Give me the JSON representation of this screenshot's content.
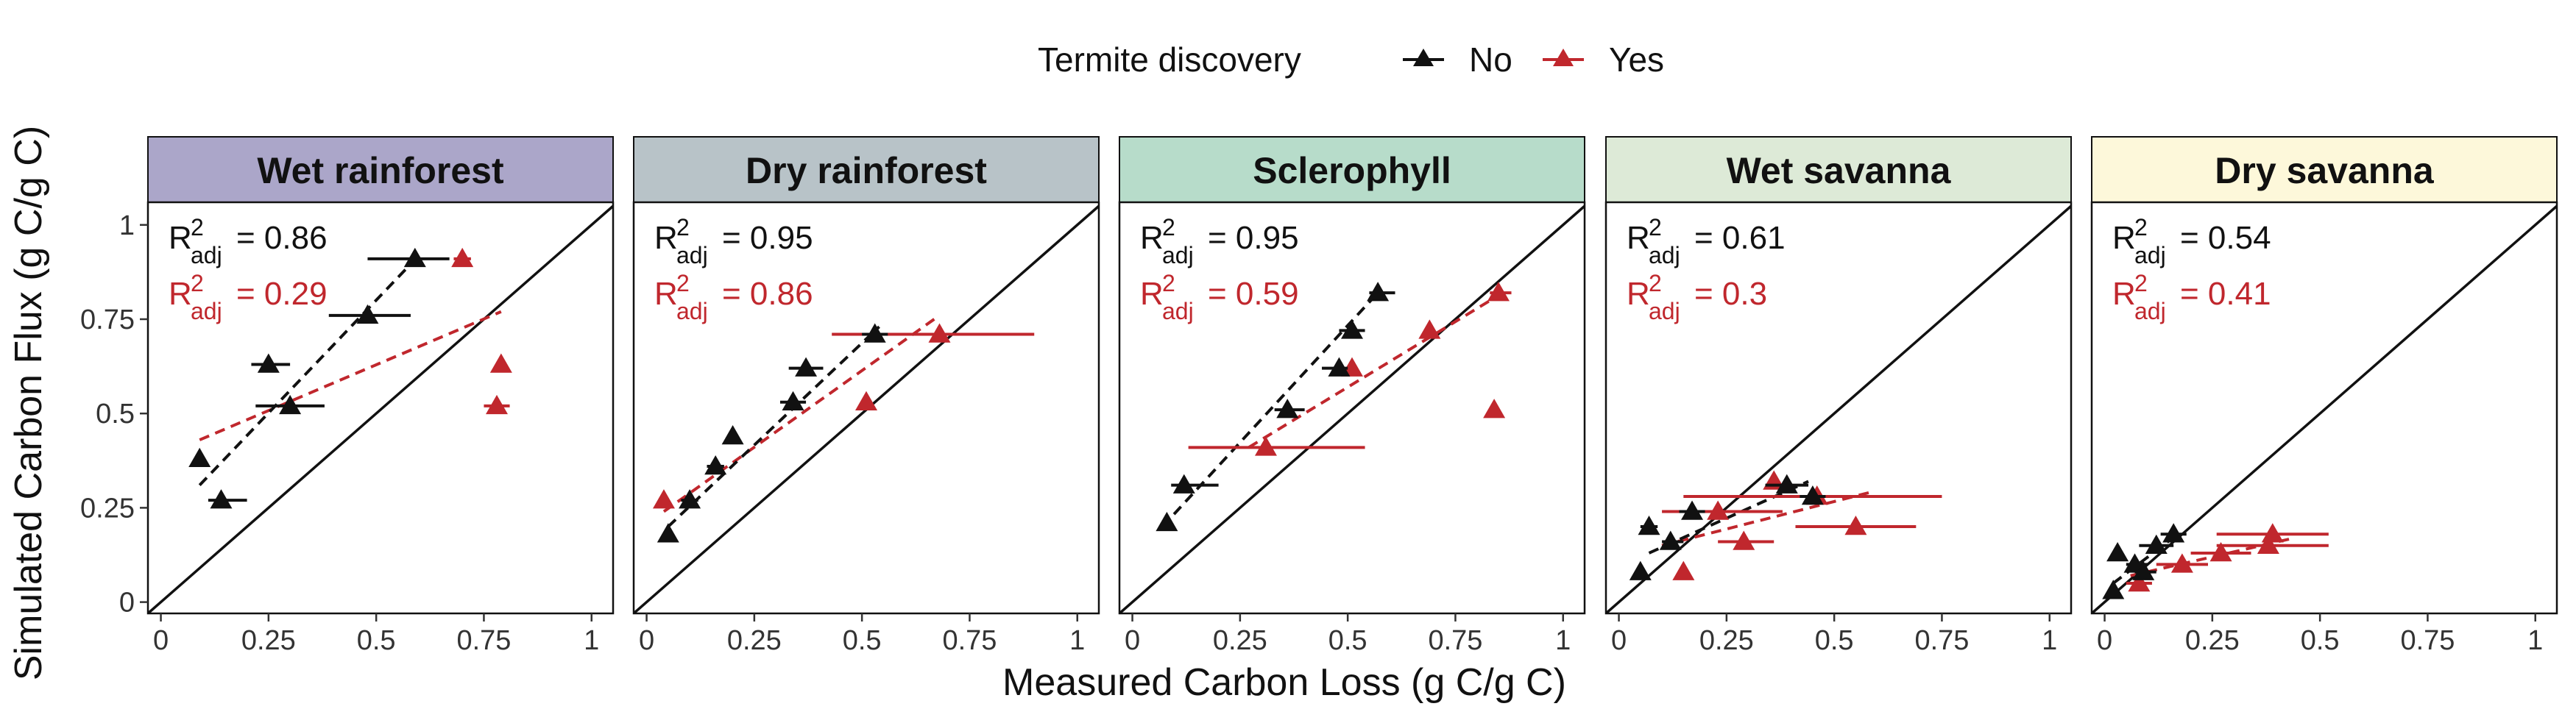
{
  "legend": {
    "title": "Termite discovery",
    "items": [
      {
        "label": "No",
        "color": "#111111"
      },
      {
        "label": "Yes",
        "color": "#C0272D"
      }
    ]
  },
  "axes": {
    "xlabel": "Measured Carbon Loss (g C/g C)",
    "ylabel": "Simulated Carbon Flux (g C/g C)",
    "xlim": [
      -0.03,
      1.05
    ],
    "ylim": [
      -0.03,
      1.06
    ],
    "xticks": [
      0,
      0.25,
      0.5,
      0.75,
      1
    ],
    "xtick_labels": [
      "0",
      "0.25",
      "0.5",
      "0.75",
      "1"
    ],
    "yticks": [
      0,
      0.25,
      0.5,
      0.75,
      1
    ],
    "ytick_labels": [
      "0",
      "0.25",
      "0.5",
      "0.75",
      "1"
    ]
  },
  "chart_data": {
    "type": "scatter",
    "reference_line": "1:1",
    "panels": [
      {
        "title": "Wet rainforest",
        "strip_color": "#ABA6C9",
        "r2_no": "0.86",
        "r2_yes": "0.29",
        "no": [
          {
            "x": 0.59,
            "y": 0.91,
            "xerr": [
              0.48,
              0.67
            ]
          },
          {
            "x": 0.48,
            "y": 0.76,
            "xerr": [
              0.39,
              0.58
            ]
          },
          {
            "x": 0.25,
            "y": 0.63,
            "xerr": [
              0.21,
              0.3
            ]
          },
          {
            "x": 0.3,
            "y": 0.52,
            "xerr": [
              0.22,
              0.38
            ]
          },
          {
            "x": 0.09,
            "y": 0.38,
            "xerr": [
              0.09,
              0.09
            ]
          },
          {
            "x": 0.14,
            "y": 0.27,
            "xerr": [
              0.11,
              0.2
            ]
          }
        ],
        "yes": [
          {
            "x": 0.7,
            "y": 0.91,
            "xerr": [
              0.68,
              0.72
            ]
          },
          {
            "x": 0.79,
            "y": 0.63,
            "xerr": [
              0.79,
              0.79
            ]
          },
          {
            "x": 0.78,
            "y": 0.52,
            "xerr": [
              0.75,
              0.81
            ]
          }
        ],
        "fit_no": [
          [
            0.09,
            0.31
          ],
          [
            0.6,
            0.92
          ]
        ],
        "fit_yes": [
          [
            0.09,
            0.43
          ],
          [
            0.79,
            0.77
          ]
        ]
      },
      {
        "title": "Dry rainforest",
        "strip_color": "#B8C3C8",
        "r2_no": "0.95",
        "r2_yes": "0.86",
        "no": [
          {
            "x": 0.53,
            "y": 0.71,
            "xerr": [
              0.5,
              0.56
            ]
          },
          {
            "x": 0.37,
            "y": 0.62,
            "xerr": [
              0.33,
              0.41
            ]
          },
          {
            "x": 0.34,
            "y": 0.53,
            "xerr": [
              0.31,
              0.37
            ]
          },
          {
            "x": 0.2,
            "y": 0.44,
            "xerr": [
              0.19,
              0.21
            ]
          },
          {
            "x": 0.16,
            "y": 0.36,
            "xerr": [
              0.14,
              0.18
            ]
          },
          {
            "x": 0.1,
            "y": 0.27,
            "xerr": [
              0.08,
              0.12
            ]
          },
          {
            "x": 0.05,
            "y": 0.18,
            "xerr": [
              0.05,
              0.05
            ]
          }
        ],
        "yes": [
          {
            "x": 0.68,
            "y": 0.71,
            "xerr": [
              0.43,
              0.9
            ]
          },
          {
            "x": 0.51,
            "y": 0.53,
            "xerr": [
              0.51,
              0.51
            ]
          },
          {
            "x": 0.04,
            "y": 0.27,
            "xerr": [
              0.04,
              0.04
            ]
          }
        ],
        "fit_no": [
          [
            0.05,
            0.2
          ],
          [
            0.54,
            0.73
          ]
        ],
        "fit_yes": [
          [
            0.04,
            0.24
          ],
          [
            0.68,
            0.76
          ]
        ]
      },
      {
        "title": "Sclerophyll",
        "strip_color": "#B7DCCA",
        "r2_no": "0.95",
        "r2_yes": "0.59",
        "no": [
          {
            "x": 0.57,
            "y": 0.82,
            "xerr": [
              0.55,
              0.61
            ]
          },
          {
            "x": 0.51,
            "y": 0.72,
            "xerr": [
              0.48,
              0.54
            ]
          },
          {
            "x": 0.48,
            "y": 0.62,
            "xerr": [
              0.44,
              0.5
            ]
          },
          {
            "x": 0.36,
            "y": 0.51,
            "xerr": [
              0.33,
              0.4
            ]
          },
          {
            "x": 0.12,
            "y": 0.31,
            "xerr": [
              0.09,
              0.2
            ]
          },
          {
            "x": 0.08,
            "y": 0.21,
            "xerr": [
              0.07,
              0.09
            ]
          }
        ],
        "yes": [
          {
            "x": 0.85,
            "y": 0.82,
            "xerr": [
              0.83,
              0.88
            ]
          },
          {
            "x": 0.69,
            "y": 0.72,
            "xerr": [
              0.69,
              0.69
            ]
          },
          {
            "x": 0.51,
            "y": 0.62,
            "xerr": [
              0.51,
              0.51
            ]
          },
          {
            "x": 0.31,
            "y": 0.41,
            "xerr": [
              0.13,
              0.54
            ]
          },
          {
            "x": 0.84,
            "y": 0.51,
            "xerr": [
              0.84,
              0.84
            ]
          }
        ],
        "fit_no": [
          [
            0.07,
            0.2
          ],
          [
            0.57,
            0.82
          ]
        ],
        "fit_yes": [
          [
            0.27,
            0.41
          ],
          [
            0.86,
            0.82
          ]
        ]
      },
      {
        "title": "Wet savanna",
        "strip_color": "#DDEAD7",
        "r2_no": "0.61",
        "r2_yes": "0.3",
        "no": [
          {
            "x": 0.39,
            "y": 0.31,
            "xerr": [
              0.34,
              0.44
            ]
          },
          {
            "x": 0.45,
            "y": 0.28,
            "xerr": [
              0.42,
              0.48
            ]
          },
          {
            "x": 0.17,
            "y": 0.24,
            "xerr": [
              0.14,
              0.2
            ]
          },
          {
            "x": 0.07,
            "y": 0.2,
            "xerr": [
              0.05,
              0.09
            ]
          },
          {
            "x": 0.12,
            "y": 0.16,
            "xerr": [
              0.1,
              0.15
            ]
          },
          {
            "x": 0.05,
            "y": 0.08,
            "xerr": [
              0.05,
              0.05
            ]
          }
        ],
        "yes": [
          {
            "x": 0.36,
            "y": 0.32,
            "xerr": [
              0.36,
              0.36
            ]
          },
          {
            "x": 0.46,
            "y": 0.28,
            "xerr": [
              0.15,
              0.75
            ]
          },
          {
            "x": 0.23,
            "y": 0.24,
            "xerr": [
              0.1,
              0.38
            ]
          },
          {
            "x": 0.55,
            "y": 0.2,
            "xerr": [
              0.41,
              0.69
            ]
          },
          {
            "x": 0.29,
            "y": 0.16,
            "xerr": [
              0.23,
              0.36
            ]
          },
          {
            "x": 0.15,
            "y": 0.08,
            "xerr": [
              0.15,
              0.15
            ]
          }
        ],
        "fit_no": [
          [
            0.07,
            0.13
          ],
          [
            0.44,
            0.32
          ]
        ],
        "fit_yes": [
          [
            0.1,
            0.15
          ],
          [
            0.58,
            0.29
          ]
        ]
      },
      {
        "title": "Dry savanna",
        "strip_color": "#FDF8DA",
        "r2_no": "0.54",
        "r2_yes": "0.41",
        "no": [
          {
            "x": 0.16,
            "y": 0.18,
            "xerr": [
              0.13,
              0.19
            ]
          },
          {
            "x": 0.12,
            "y": 0.15,
            "xerr": [
              0.08,
              0.16
            ]
          },
          {
            "x": 0.03,
            "y": 0.13,
            "xerr": [
              0.03,
              0.03
            ]
          },
          {
            "x": 0.07,
            "y": 0.1,
            "xerr": [
              0.05,
              0.1
            ]
          },
          {
            "x": 0.09,
            "y": 0.08,
            "xerr": [
              0.07,
              0.12
            ]
          },
          {
            "x": 0.02,
            "y": 0.03,
            "xerr": [
              0.02,
              0.02
            ]
          }
        ],
        "yes": [
          {
            "x": 0.39,
            "y": 0.18,
            "xerr": [
              0.26,
              0.52
            ]
          },
          {
            "x": 0.38,
            "y": 0.15,
            "xerr": [
              0.26,
              0.52
            ]
          },
          {
            "x": 0.27,
            "y": 0.13,
            "xerr": [
              0.2,
              0.34
            ]
          },
          {
            "x": 0.18,
            "y": 0.1,
            "xerr": [
              0.12,
              0.24
            ]
          },
          {
            "x": 0.08,
            "y": 0.05,
            "xerr": [
              0.05,
              0.11
            ]
          }
        ],
        "fit_no": [
          [
            0.02,
            0.05
          ],
          [
            0.17,
            0.18
          ]
        ],
        "fit_yes": [
          [
            0.06,
            0.07
          ],
          [
            0.44,
            0.17
          ]
        ]
      }
    ]
  }
}
